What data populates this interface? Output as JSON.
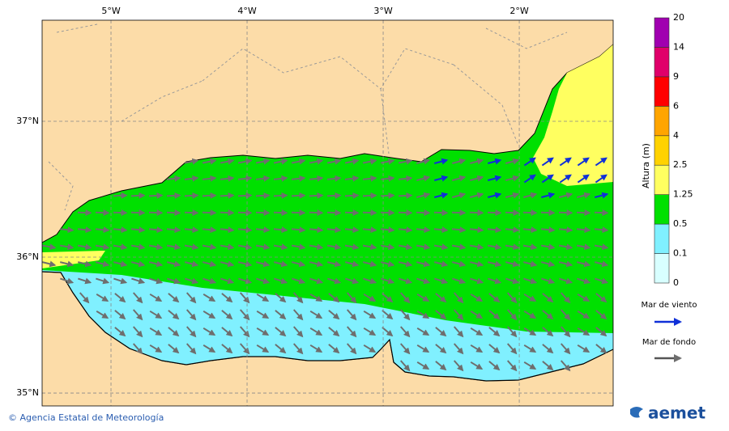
{
  "map": {
    "xlim": [
      -5.506,
      -1.31
    ],
    "ylim": [
      34.905,
      37.744
    ],
    "xticks": [
      {
        "value": -5,
        "label": "5°W"
      },
      {
        "value": -4,
        "label": "4°W"
      },
      {
        "value": -3,
        "label": "3°W"
      },
      {
        "value": -2,
        "label": "2°W"
      }
    ],
    "yticks": [
      {
        "value": 37,
        "label": "37°N"
      },
      {
        "value": 36,
        "label": "36°N"
      },
      {
        "value": 35,
        "label": "35°N"
      }
    ]
  },
  "colorbar": {
    "title": "Altura (m)",
    "levels": [
      0,
      0.1,
      0.5,
      1.25,
      2.5,
      4,
      6,
      9,
      14,
      20
    ],
    "colors": [
      "#d8ffff",
      "#80f0ff",
      "#00e000",
      "#ffff60",
      "#ffd200",
      "#ffa500",
      "#ff0000",
      "#e0006a",
      "#a000b0"
    ]
  },
  "legend": {
    "wind_sea": "Mar de viento",
    "swell": "Mar de fondo"
  },
  "footer": {
    "credit": "© Agencia Estatal de Meteorología",
    "logo": "aemet"
  }
}
